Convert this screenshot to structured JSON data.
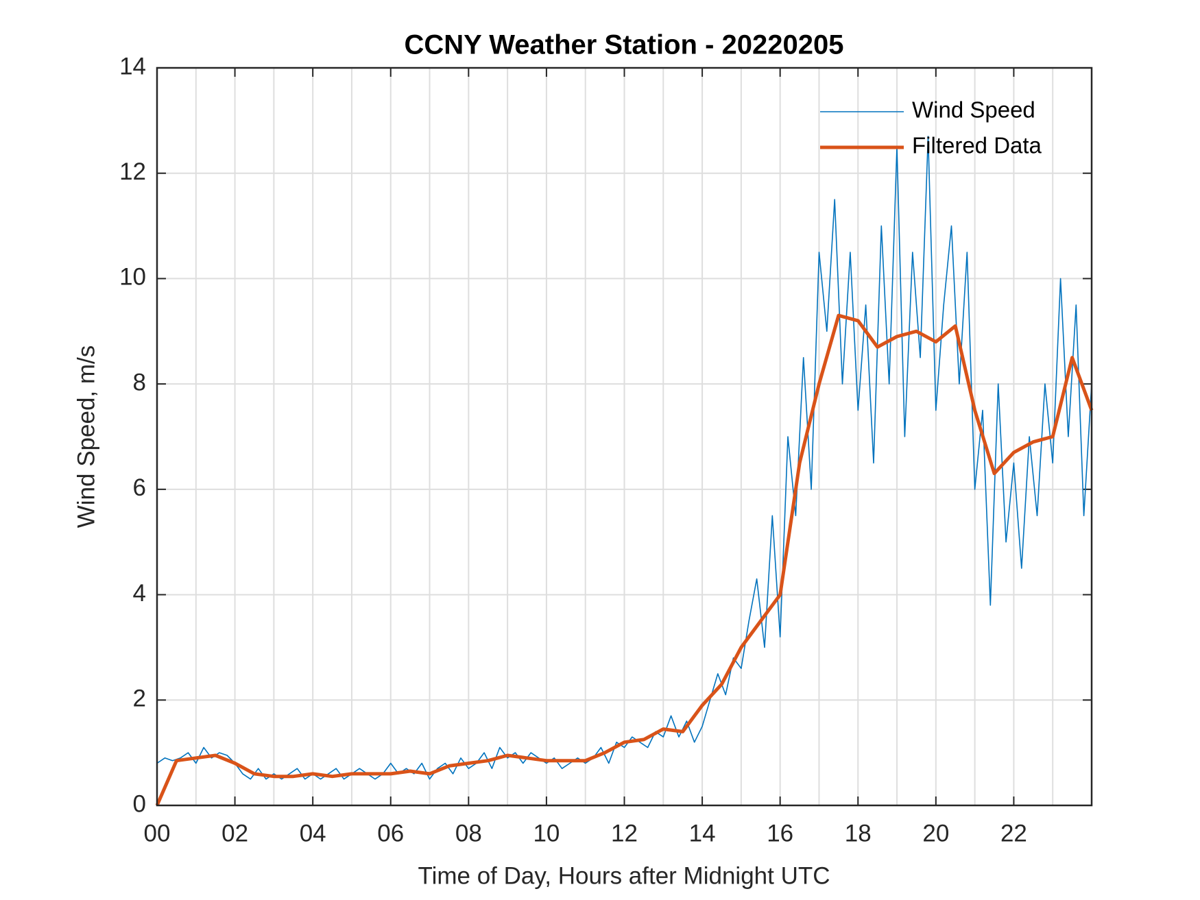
{
  "chart_data": {
    "type": "line",
    "title": "CCNY Weather Station - 20220205",
    "x_label": "Time of Day, Hours after Midnight UTC",
    "y_label": "Wind Speed, m/s",
    "xlim": [
      0,
      24
    ],
    "ylim": [
      0,
      14
    ],
    "xticks": [
      {
        "value": 0,
        "label": "00"
      },
      {
        "value": 2,
        "label": "02"
      },
      {
        "value": 4,
        "label": "04"
      },
      {
        "value": 6,
        "label": "06"
      },
      {
        "value": 8,
        "label": "08"
      },
      10,
      12,
      14,
      16,
      18,
      20,
      22
    ],
    "xminorticks": [
      1,
      3,
      5,
      7,
      9,
      11,
      13,
      15,
      17,
      19,
      21,
      23
    ],
    "yticks": [
      0,
      2,
      4,
      6,
      8,
      10,
      12,
      14
    ],
    "grid": true,
    "legend": "upper right",
    "series": [
      {
        "name": "Wind Speed",
        "color": "#0072BD",
        "x": [
          0,
          0.2,
          0.4,
          0.6,
          0.8,
          1,
          1.2,
          1.4,
          1.6,
          1.8,
          2,
          2.2,
          2.4,
          2.6,
          2.8,
          3,
          3.2,
          3.4,
          3.6,
          3.8,
          4,
          4.2,
          4.4,
          4.6,
          4.8,
          5,
          5.2,
          5.4,
          5.6,
          5.8,
          6,
          6.2,
          6.4,
          6.6,
          6.8,
          7,
          7.2,
          7.4,
          7.6,
          7.8,
          8,
          8.2,
          8.4,
          8.6,
          8.8,
          9,
          9.2,
          9.4,
          9.6,
          9.8,
          10,
          10.2,
          10.4,
          10.6,
          10.8,
          11,
          11.2,
          11.4,
          11.6,
          11.8,
          12,
          12.2,
          12.4,
          12.6,
          12.8,
          13,
          13.2,
          13.4,
          13.6,
          13.8,
          14,
          14.2,
          14.4,
          14.6,
          14.8,
          15,
          15.2,
          15.4,
          15.6,
          15.8,
          16,
          16.2,
          16.4,
          16.6,
          16.8,
          17,
          17.2,
          17.4,
          17.6,
          17.8,
          18,
          18.2,
          18.4,
          18.6,
          18.8,
          19,
          19.2,
          19.4,
          19.6,
          19.8,
          20,
          20.2,
          20.4,
          20.6,
          20.8,
          21,
          21.2,
          21.4,
          21.6,
          21.8,
          22,
          22.2,
          22.4,
          22.6,
          22.8,
          23,
          23.2,
          23.4,
          23.6,
          23.8,
          24
        ],
        "values": [
          0.8,
          0.9,
          0.85,
          0.9,
          1.0,
          0.8,
          1.1,
          0.9,
          1.0,
          0.95,
          0.8,
          0.6,
          0.5,
          0.7,
          0.5,
          0.6,
          0.5,
          0.6,
          0.7,
          0.5,
          0.6,
          0.5,
          0.6,
          0.7,
          0.5,
          0.6,
          0.7,
          0.6,
          0.5,
          0.6,
          0.8,
          0.6,
          0.7,
          0.6,
          0.8,
          0.5,
          0.7,
          0.8,
          0.6,
          0.9,
          0.7,
          0.8,
          1.0,
          0.7,
          1.1,
          0.9,
          1.0,
          0.8,
          1.0,
          0.9,
          0.8,
          0.9,
          0.7,
          0.8,
          0.9,
          0.8,
          0.9,
          1.1,
          0.8,
          1.2,
          1.1,
          1.3,
          1.2,
          1.1,
          1.4,
          1.3,
          1.7,
          1.3,
          1.6,
          1.2,
          1.5,
          2.0,
          2.5,
          2.1,
          2.8,
          2.6,
          3.5,
          4.3,
          3.0,
          5.5,
          3.2,
          7.0,
          5.5,
          8.5,
          6.0,
          10.5,
          9.0,
          11.5,
          8.0,
          10.5,
          7.5,
          9.5,
          6.5,
          11.0,
          8.0,
          12.5,
          7.0,
          10.5,
          8.5,
          12.7,
          7.5,
          9.5,
          11.0,
          8.0,
          10.5,
          6.0,
          7.5,
          3.8,
          8.0,
          5.0,
          6.5,
          4.5,
          7.0,
          5.5,
          8.0,
          6.5,
          10.0,
          7.0,
          9.5,
          5.5,
          8.0
        ]
      },
      {
        "name": "Filtered Data",
        "color": "#D95319",
        "x": [
          0,
          0.5,
          1,
          1.5,
          2,
          2.5,
          3,
          3.5,
          4,
          4.5,
          5,
          5.5,
          6,
          6.5,
          7,
          7.5,
          8,
          8.5,
          9,
          9.5,
          10,
          10.5,
          11,
          11.5,
          12,
          12.5,
          13,
          13.5,
          14,
          14.5,
          15,
          15.5,
          16,
          16.5,
          17,
          17.5,
          18,
          18.5,
          19,
          19.5,
          20,
          20.5,
          21,
          21.5,
          22,
          22.5,
          23,
          23.5,
          24
        ],
        "values": [
          0,
          0.85,
          0.9,
          0.95,
          0.8,
          0.6,
          0.55,
          0.55,
          0.6,
          0.55,
          0.6,
          0.6,
          0.6,
          0.65,
          0.6,
          0.75,
          0.8,
          0.85,
          0.95,
          0.9,
          0.85,
          0.85,
          0.85,
          1.0,
          1.2,
          1.25,
          1.45,
          1.4,
          1.9,
          2.3,
          3.0,
          3.5,
          4.0,
          6.5,
          8.0,
          9.3,
          9.2,
          8.7,
          8.9,
          9.0,
          8.8,
          9.1,
          7.5,
          6.3,
          6.7,
          6.9,
          7.0,
          8.5,
          7.5
        ]
      }
    ]
  }
}
